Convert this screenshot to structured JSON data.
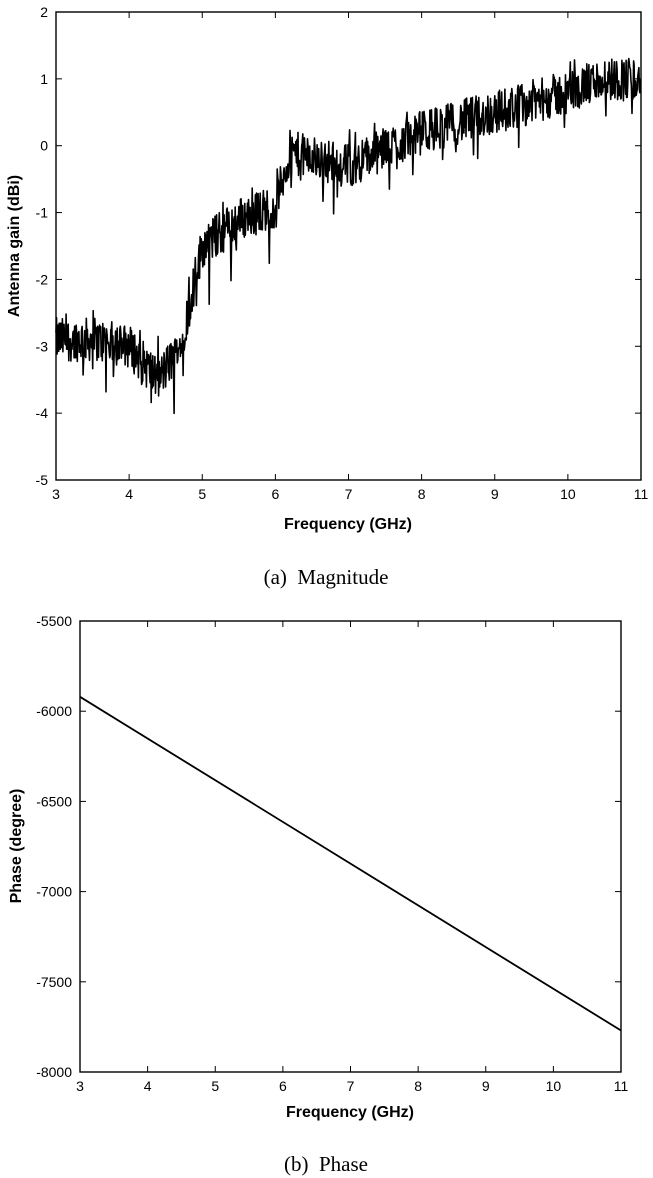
{
  "chart_data": [
    {
      "type": "line",
      "caption": "(a)  Magnitude",
      "xlabel": "Frequency (GHz)",
      "ylabel": "Antenna gain (dBi)",
      "xlim": [
        3,
        11
      ],
      "ylim": [
        -5,
        2
      ],
      "xticks": [
        "3",
        "4",
        "5",
        "6",
        "7",
        "8",
        "9",
        "10",
        "11"
      ],
      "yticks": [
        "-5",
        "-4",
        "-3",
        "-2",
        "-1",
        "0",
        "1",
        "2"
      ],
      "trend_x": [
        3.0,
        3.5,
        4.0,
        4.4,
        4.7,
        5.0,
        5.5,
        6.0,
        6.2,
        7.0,
        8.0,
        9.0,
        10.0,
        10.5,
        11.0
      ],
      "trend_y": [
        -2.9,
        -2.9,
        -3.0,
        -3.5,
        -3.0,
        -1.5,
        -1.1,
        -0.9,
        -0.1,
        -0.3,
        0.2,
        0.5,
        0.8,
        1.0,
        1.0
      ],
      "noise_amplitude": 0.33
    },
    {
      "type": "line",
      "caption": "(b)  Phase",
      "xlabel": "Frequency (GHz)",
      "ylabel": "Phase (degree)",
      "xlim": [
        3,
        11
      ],
      "ylim": [
        -8000,
        -5500
      ],
      "xticks": [
        "3",
        "4",
        "5",
        "6",
        "7",
        "8",
        "9",
        "10",
        "11"
      ],
      "yticks": [
        "-8000",
        "-7500",
        "-7000",
        "-6500",
        "-6000",
        "-5500"
      ],
      "x": [
        3,
        11
      ],
      "y": [
        -5920,
        -7770
      ]
    }
  ]
}
